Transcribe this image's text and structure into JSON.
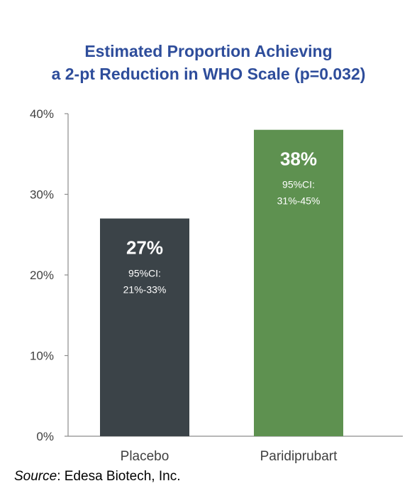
{
  "title": {
    "line1": "Estimated Proportion Achieving",
    "line2": "a 2-pt Reduction in WHO Scale (p=0.032)"
  },
  "colors": {
    "title": "#2e4d9b",
    "placebo_bar": "#3b4348",
    "paridiprubart_bar": "#5e9150",
    "axis": "#8c8c8c"
  },
  "chart_data": {
    "type": "bar",
    "title": "Estimated Proportion Achieving a 2-pt Reduction in WHO Scale (p=0.032)",
    "categories": [
      "Placebo",
      "Paridiprubart"
    ],
    "values": [
      27,
      38
    ],
    "value_labels": [
      "27%",
      "38%"
    ],
    "ci_labels": [
      [
        "95%CI:",
        "21%-33%"
      ],
      [
        "95%CI:",
        "31%-45%"
      ]
    ],
    "ylim": [
      0,
      40
    ],
    "yticks": [
      0,
      10,
      20,
      30,
      40
    ],
    "ytick_labels": [
      "0%",
      "10%",
      "20%",
      "30%",
      "40%"
    ],
    "xlabel": "",
    "ylabel": "",
    "grid": false,
    "legend": "none"
  },
  "source": {
    "label": "Source",
    "text": ": Edesa Biotech, Inc."
  }
}
